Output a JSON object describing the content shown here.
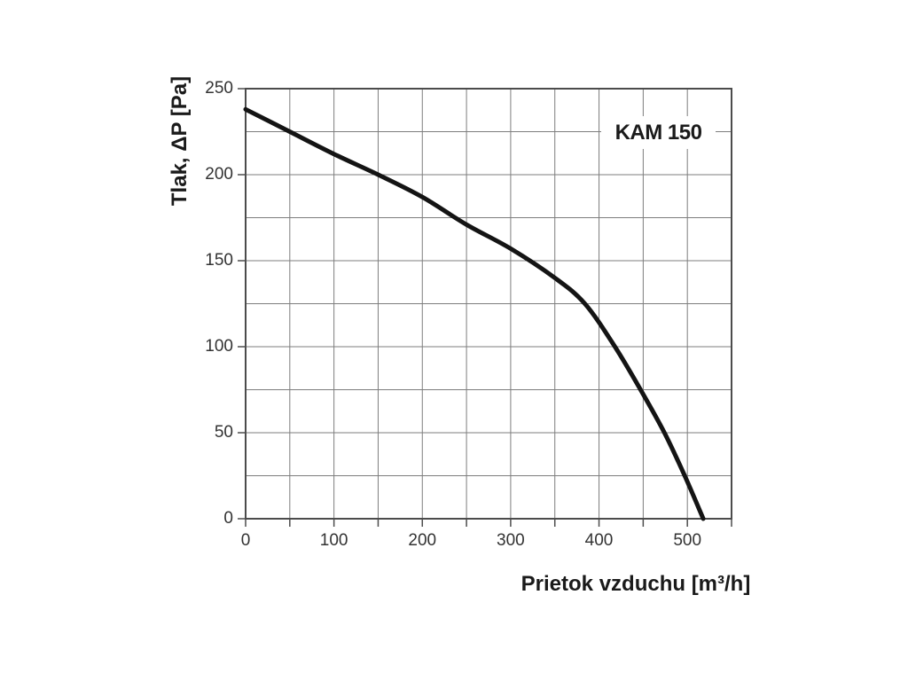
{
  "chart_data": {
    "type": "line",
    "title": "",
    "series_label": "KAM 150",
    "xlabel": "Prietok vzduchu  [m³/h]",
    "ylabel": "Tlak, ΔP [Pa]",
    "xlim": [
      0,
      550
    ],
    "ylim": [
      0,
      250
    ],
    "x_major_ticks": [
      0,
      100,
      200,
      300,
      400,
      500
    ],
    "y_major_ticks": [
      0,
      50,
      100,
      150,
      200,
      250
    ],
    "x_grid_step": 50,
    "y_grid_step": 25,
    "grid": true,
    "legend_position": "none",
    "series": [
      {
        "name": "KAM 150",
        "x": [
          0,
          50,
          100,
          150,
          200,
          250,
          300,
          350,
          384,
          418,
          447,
          474,
          497,
          518
        ],
        "y": [
          238,
          225,
          212,
          200,
          187,
          171,
          157,
          140,
          125,
          100,
          75,
          50,
          25,
          0
        ]
      }
    ]
  },
  "colors": {
    "background": "#ffffff",
    "grid": "#7d7d7d",
    "axis_border": "#4c4c4c",
    "curve": "#141414",
    "tick_text": "#333333",
    "title_text": "#1a1a1a"
  }
}
